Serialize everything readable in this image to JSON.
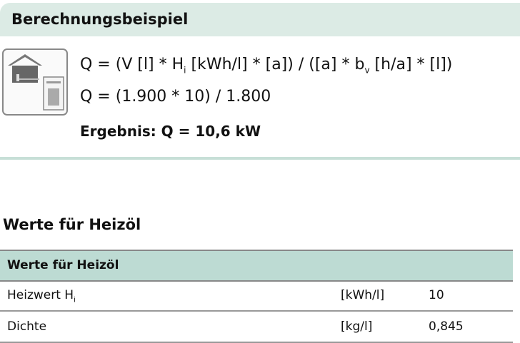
{
  "example": {
    "title": "Berechnungsbeispiel",
    "icon": "house-boiler-icon",
    "formula_prefix": "Q = (V [l] * H",
    "formula_sub": "i",
    "formula_mid": " [kWh/l] * [a]) / ([a] * b",
    "formula_sub2": "v",
    "formula_suffix": " [h/a] * [l])",
    "calc": "Q = (1.900 * 10) / 1.800",
    "result": "Ergebnis: Q = 10,6 kW"
  },
  "values": {
    "heading": "Werte für Heizöl",
    "table_header": "Werte für Heizöl",
    "rows": [
      {
        "label": "Heizwert H",
        "label_sub": "i",
        "unit": "[kWh/l]",
        "value": "10"
      },
      {
        "label": "Dichte",
        "label_sub": "",
        "unit": "[kg/l]",
        "value": "0,845"
      }
    ]
  },
  "colors": {
    "header_bg": "#dcebe5",
    "table_header_bg": "#bddbd3"
  }
}
